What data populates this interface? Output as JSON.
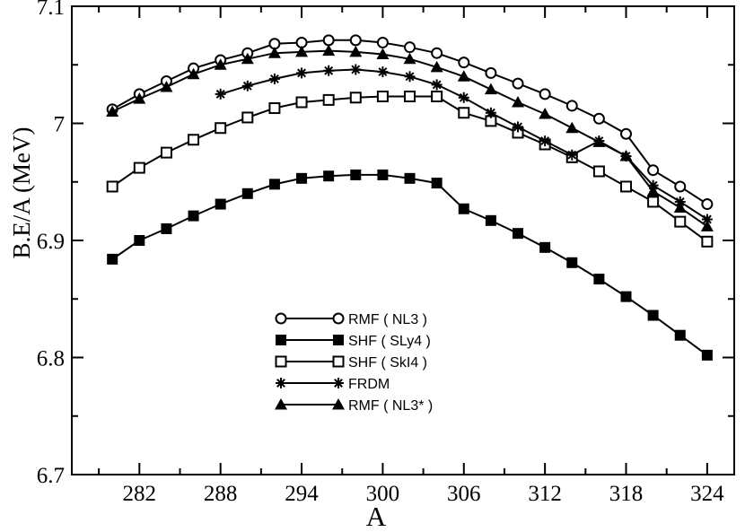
{
  "chart_data": {
    "type": "line",
    "xlabel": "A",
    "ylabel": "B.E/A (MeV)",
    "xlim": [
      277,
      326
    ],
    "ylim": [
      6.7,
      7.1
    ],
    "xticks": [
      282,
      288,
      294,
      300,
      306,
      312,
      318,
      324
    ],
    "yticks": [
      6.7,
      6.8,
      6.9,
      7.0,
      7.1
    ],
    "ytick_labels": [
      "6.7",
      "6.8",
      "6.9",
      "7",
      "7.1"
    ],
    "grid": false,
    "legend_position": "bottom-center",
    "series": [
      {
        "name": "RMF ( NL3 )",
        "marker": "open-circle",
        "x": [
          280,
          282,
          284,
          286,
          288,
          290,
          292,
          294,
          296,
          298,
          300,
          302,
          304,
          306,
          308,
          310,
          312,
          314,
          316,
          318,
          320,
          322,
          324
        ],
        "y": [
          7.012,
          7.025,
          7.036,
          7.047,
          7.054,
          7.06,
          7.068,
          7.069,
          7.071,
          7.071,
          7.069,
          7.065,
          7.06,
          7.052,
          7.043,
          7.034,
          7.025,
          7.015,
          7.004,
          6.991,
          6.96,
          6.946,
          6.931
        ]
      },
      {
        "name": "SHF ( SLy4 )",
        "marker": "filled-square",
        "x": [
          280,
          282,
          284,
          286,
          288,
          290,
          292,
          294,
          296,
          298,
          300,
          302,
          304,
          306,
          308,
          310,
          312,
          314,
          316,
          318,
          320,
          322,
          324
        ],
        "y": [
          6.884,
          6.9,
          6.91,
          6.921,
          6.931,
          6.94,
          6.948,
          6.953,
          6.955,
          6.956,
          6.956,
          6.953,
          6.949,
          6.927,
          6.917,
          6.906,
          6.894,
          6.881,
          6.867,
          6.852,
          6.836,
          6.819,
          6.802
        ]
      },
      {
        "name": "SHF ( SkI4 )",
        "marker": "open-square",
        "x": [
          280,
          282,
          284,
          286,
          288,
          290,
          292,
          294,
          296,
          298,
          300,
          302,
          304,
          306,
          308,
          310,
          312,
          314,
          316,
          318,
          320,
          322,
          324
        ],
        "y": [
          6.946,
          6.962,
          6.975,
          6.986,
          6.996,
          7.005,
          7.013,
          7.018,
          7.02,
          7.022,
          7.023,
          7.023,
          7.023,
          7.009,
          7.002,
          6.992,
          6.982,
          6.971,
          6.959,
          6.946,
          6.933,
          6.916,
          6.899
        ]
      },
      {
        "name": "FRDM",
        "marker": "asterisk",
        "x": [
          288,
          290,
          292,
          294,
          296,
          298,
          300,
          302,
          304,
          306,
          308,
          310,
          312,
          314,
          316,
          318,
          320,
          322,
          324
        ],
        "y": [
          7.025,
          7.032,
          7.038,
          7.043,
          7.045,
          7.046,
          7.044,
          7.04,
          7.033,
          7.022,
          7.009,
          6.997,
          6.985,
          6.973,
          6.985,
          6.972,
          6.947,
          6.933,
          6.918
        ]
      },
      {
        "name": "RMF ( NL3* )",
        "marker": "filled-triangle",
        "x": [
          280,
          282,
          284,
          286,
          288,
          290,
          292,
          294,
          296,
          298,
          300,
          302,
          304,
          306,
          308,
          310,
          312,
          314,
          316,
          318,
          320,
          322,
          324
        ],
        "y": [
          7.01,
          7.021,
          7.031,
          7.042,
          7.05,
          7.055,
          7.06,
          7.061,
          7.062,
          7.061,
          7.059,
          7.055,
          7.048,
          7.04,
          7.029,
          7.018,
          7.008,
          6.996,
          6.984,
          6.972,
          6.942,
          6.928,
          6.912
        ]
      }
    ]
  }
}
